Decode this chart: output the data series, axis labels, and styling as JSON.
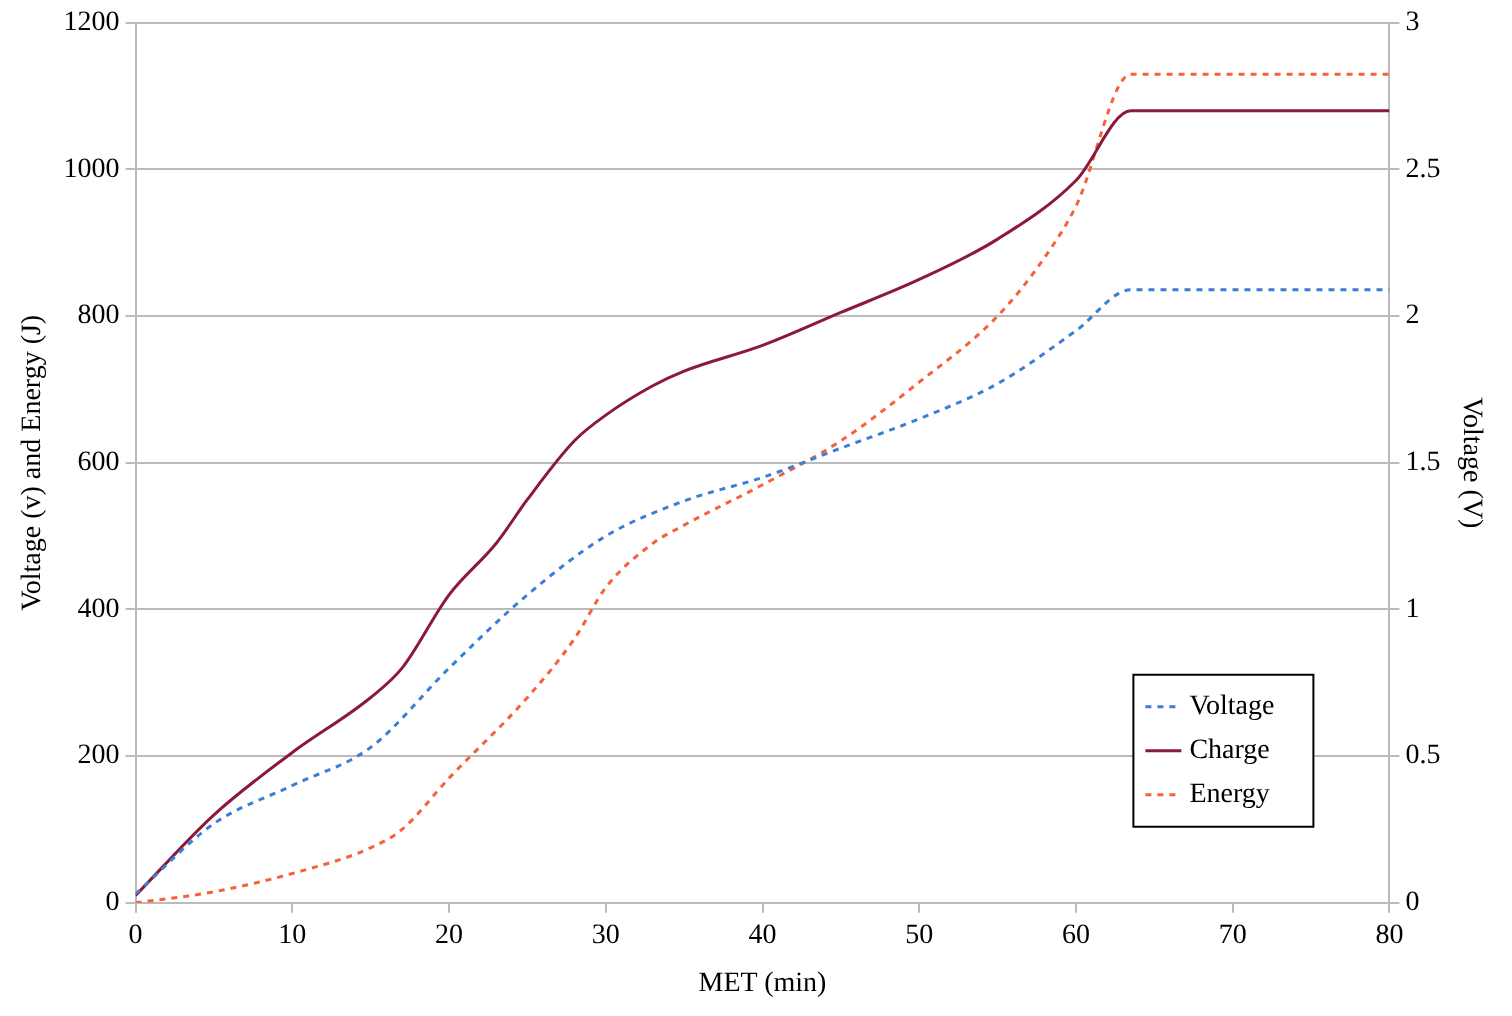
{
  "chart_data": {
    "type": "line",
    "xlabel": "MET (min)",
    "ylabel": "Voltage (v) and Energy (J)",
    "y2label": "Voltage (V)",
    "xlim": [
      0,
      80
    ],
    "xticks": [
      0,
      10,
      20,
      30,
      40,
      50,
      60,
      70,
      80
    ],
    "ylim": [
      0,
      1200
    ],
    "yticks": [
      0,
      200,
      400,
      600,
      800,
      1000,
      1200
    ],
    "y2lim": [
      0,
      3
    ],
    "y2ticks": [
      0,
      0.5,
      1,
      1.5,
      2,
      2.5,
      3
    ],
    "grid": "y",
    "legend": "bottom right",
    "marker": "none",
    "series": [
      {
        "name": "Voltage",
        "color": "#3a7fd5",
        "axis": "y2",
        "line_style": "dotted",
        "x": [
          0,
          5,
          10,
          15,
          20,
          25,
          30,
          35,
          40,
          45,
          50,
          55,
          60,
          63.5,
          80
        ],
        "values": [
          0.03,
          0.27,
          0.4,
          0.53,
          0.8,
          1.05,
          1.25,
          1.37,
          1.45,
          1.55,
          1.65,
          1.77,
          1.95,
          2.09,
          2.09
        ]
      },
      {
        "name": "Charge",
        "color": "#8b1a3a",
        "line_style": "solid",
        "x": [
          0,
          5,
          10,
          15,
          17,
          20,
          23,
          25,
          28,
          30,
          33,
          35,
          40,
          45,
          50,
          55,
          60,
          63.5,
          80
        ],
        "values": [
          10,
          120,
          205,
          280,
          320,
          420,
          490,
          550,
          630,
          665,
          705,
          725,
          760,
          805,
          850,
          905,
          985,
          1080,
          1080
        ]
      },
      {
        "name": "Energy",
        "color": "#f4623a",
        "line_style": "dotted",
        "x": [
          0,
          5,
          10,
          15,
          17,
          20,
          25,
          28,
          30,
          33,
          35,
          40,
          45,
          50,
          55,
          58,
          60,
          63.5,
          80
        ],
        "values": [
          0,
          15,
          40,
          75,
          100,
          170,
          280,
          360,
          430,
          490,
          515,
          570,
          630,
          710,
          800,
          880,
          950,
          1130,
          1130
        ]
      }
    ]
  }
}
